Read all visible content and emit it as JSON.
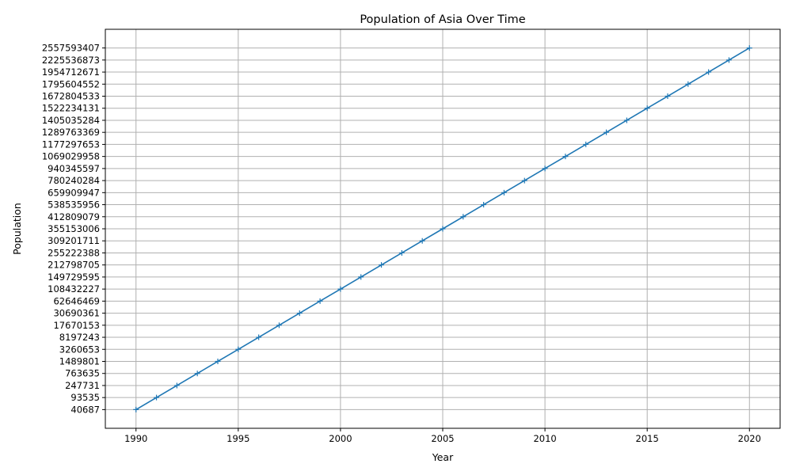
{
  "chart_data": {
    "type": "line",
    "title": "Population of Asia Over Time",
    "xlabel": "Year",
    "ylabel": "Population",
    "x_ticks": [
      "1990",
      "1995",
      "2000",
      "2005",
      "2010",
      "2015",
      "2020"
    ],
    "x_tick_values": [
      1990,
      1995,
      2000,
      2005,
      2010,
      2015,
      2020
    ],
    "xlim": [
      1988.5,
      2021.5
    ],
    "y_axis": "categorical",
    "grid": true,
    "marker": "plus",
    "line_color": "#1f77b4",
    "x": [
      1990,
      1991,
      1992,
      1993,
      1994,
      1995,
      1996,
      1997,
      1998,
      1999,
      2000,
      2001,
      2002,
      2003,
      2004,
      2005,
      2006,
      2007,
      2008,
      2009,
      2010,
      2011,
      2012,
      2013,
      2014,
      2015,
      2016,
      2017,
      2018,
      2019,
      2020
    ],
    "y": [
      "40687",
      "93535",
      "247731",
      "763635",
      "1489801",
      "3260653",
      "8197243",
      "17670153",
      "30690361",
      "62646469",
      "108432227",
      "149729595",
      "212798705",
      "255222388",
      "309201711",
      "355153006",
      "412809079",
      "538535956",
      "659909947",
      "780240284",
      "940345597",
      "1069029958",
      "1177297653",
      "1289763369",
      "1405035284",
      "1522234131",
      "1672804533",
      "1795604552",
      "1954712671",
      "2225536873",
      "2557593407"
    ]
  }
}
